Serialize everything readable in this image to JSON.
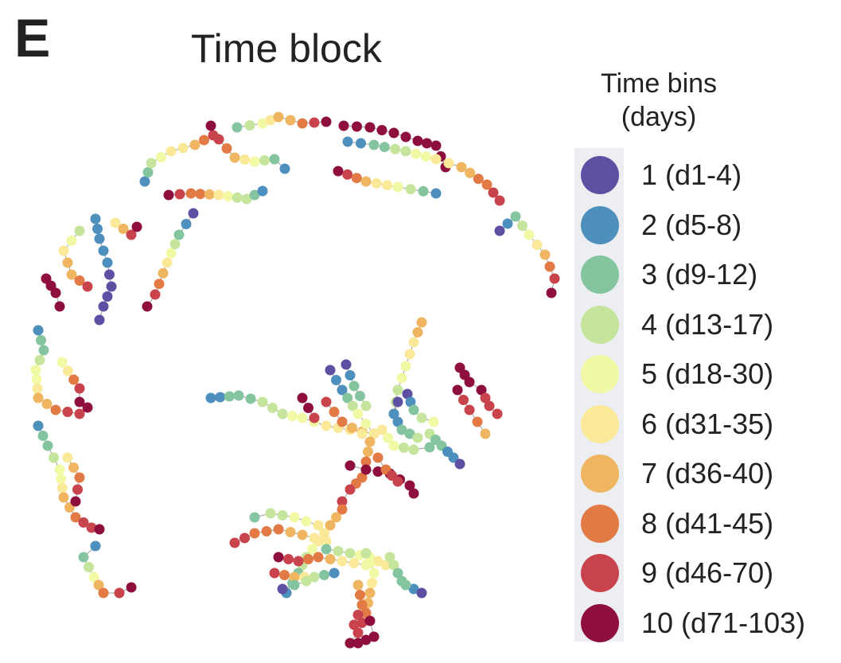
{
  "panel_letter": "E",
  "title": "Time block",
  "legend": {
    "title_line1": "Time bins",
    "title_line2": "(days)",
    "items": [
      {
        "label": "1 (d1-4)",
        "color": "#5e4fa2"
      },
      {
        "label": "2 (d5-8)",
        "color": "#4d8fbd"
      },
      {
        "label": "3 (d9-12)",
        "color": "#84c5a0"
      },
      {
        "label": "4 (d13-17)",
        "color": "#c4e59b"
      },
      {
        "label": "5 (d18-30)",
        "color": "#f2f9a5"
      },
      {
        "label": "6 (d31-35)",
        "color": "#fbe99a"
      },
      {
        "label": "7 (d36-40)",
        "color": "#efb561"
      },
      {
        "label": "8 (d41-45)",
        "color": "#e27a45"
      },
      {
        "label": "9 (d46-70)",
        "color": "#c9434d"
      },
      {
        "label": "10 (d71-103)",
        "color": "#8e0f3e"
      }
    ]
  }
}
